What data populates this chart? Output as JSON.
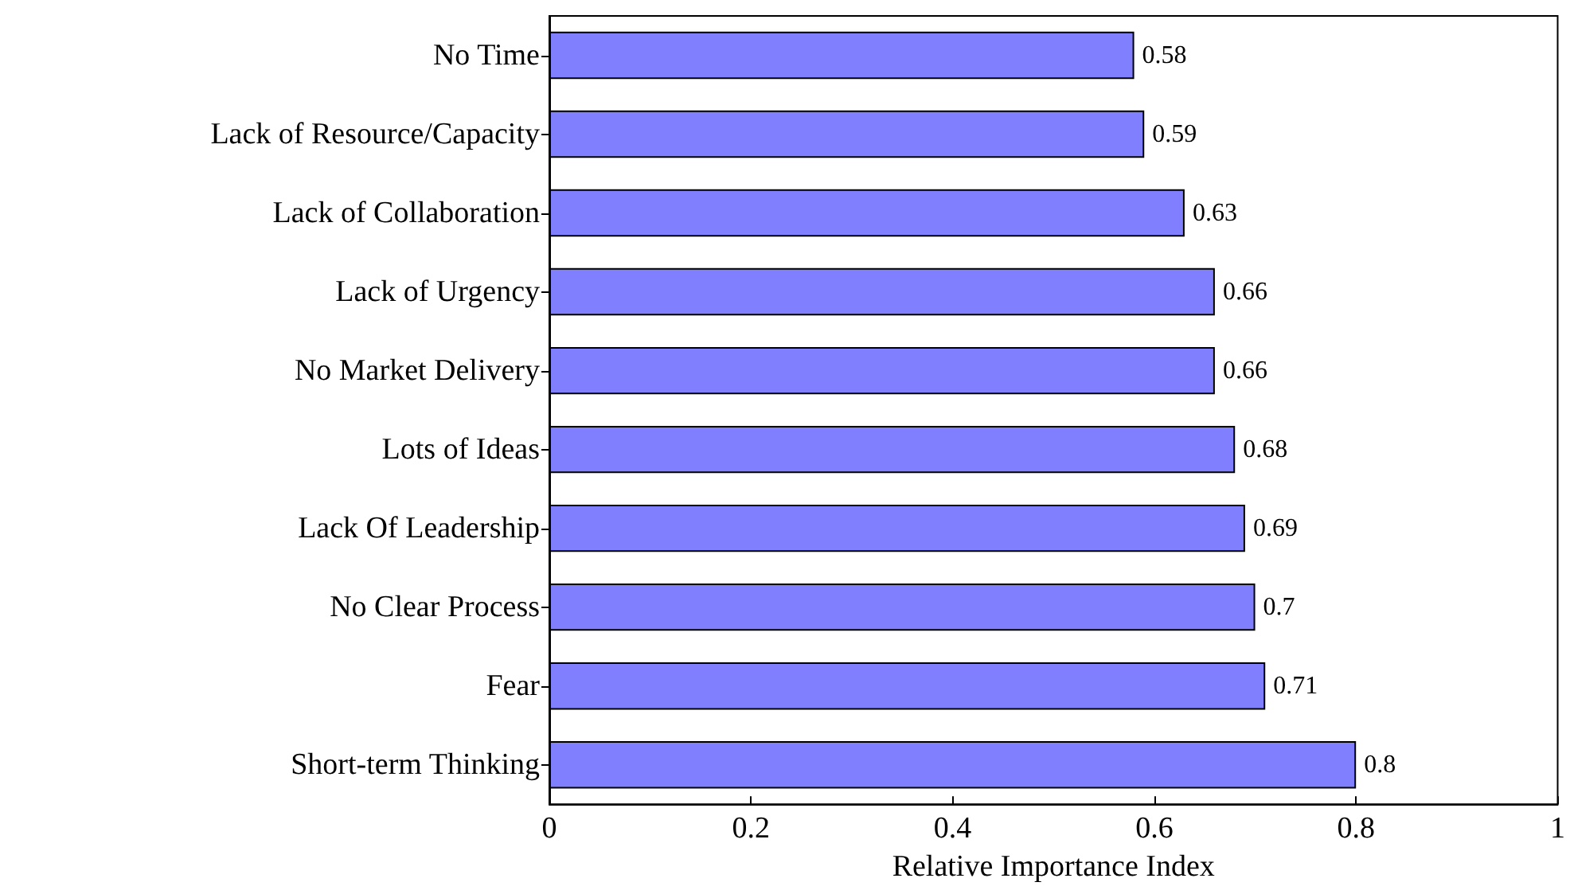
{
  "chart_data": {
    "type": "bar",
    "orientation": "horizontal",
    "xlabel": "Relative Importance Index",
    "categories": [
      "No Time",
      "Lack of Resource/Capacity",
      "Lack of Collaboration",
      "Lack of Urgency",
      "No Market Delivery",
      "Lots of Ideas",
      "Lack Of Leadership",
      "No Clear Process",
      "Fear",
      "Short-term Thinking"
    ],
    "values": [
      0.58,
      0.59,
      0.63,
      0.66,
      0.66,
      0.68,
      0.69,
      0.7,
      0.71,
      0.8
    ],
    "color": "#8080ff",
    "xlim": [
      0,
      1
    ],
    "xticks": [
      0,
      0.2,
      0.4,
      0.6,
      0.8,
      1
    ],
    "data_labels": true
  }
}
